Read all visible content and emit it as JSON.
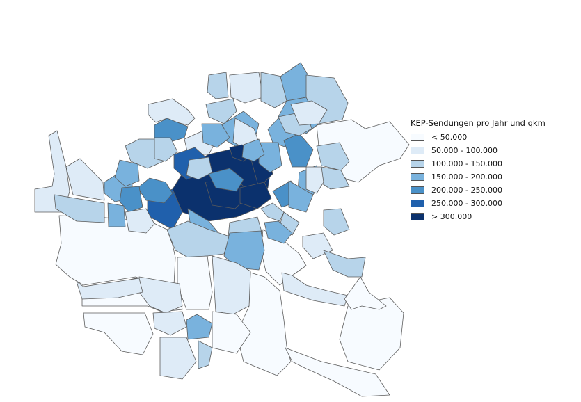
{
  "legend": {
    "title": "KEP-Sendungen pro Jahr und qkm",
    "classes": [
      {
        "label": "< 50.000",
        "color": "#f7fbff"
      },
      {
        "label": "50.000 - 100.000",
        "color": "#deebf7"
      },
      {
        "label": "100.000 - 150.000",
        "color": "#b7d4ea"
      },
      {
        "label": "150.000 - 200.000",
        "color": "#79b2dd"
      },
      {
        "label": "200.000 - 250.000",
        "color": "#4a91c8"
      },
      {
        "label": "250.000 - 300.000",
        "color": "#2060ac"
      },
      {
        "label": "> 300.000",
        "color": "#0b316d"
      }
    ]
  },
  "map": {
    "border_color": "#5b5b5b",
    "district_classes": [
      0,
      0,
      0,
      0,
      0,
      0,
      0,
      0,
      1,
      2,
      1,
      1,
      2,
      2,
      3,
      4,
      2,
      1,
      1,
      2,
      3,
      2,
      3,
      3,
      1,
      6,
      5,
      6,
      6,
      6,
      3,
      2,
      4,
      3,
      2,
      2,
      5,
      4,
      3,
      4,
      3,
      1,
      2,
      3,
      3,
      4,
      3,
      2,
      2,
      3,
      2,
      1,
      1,
      0,
      1,
      1,
      1,
      0,
      1,
      2,
      0,
      2,
      1,
      3,
      2,
      3,
      3,
      2,
      2,
      3,
      4,
      6,
      1,
      1
    ]
  }
}
